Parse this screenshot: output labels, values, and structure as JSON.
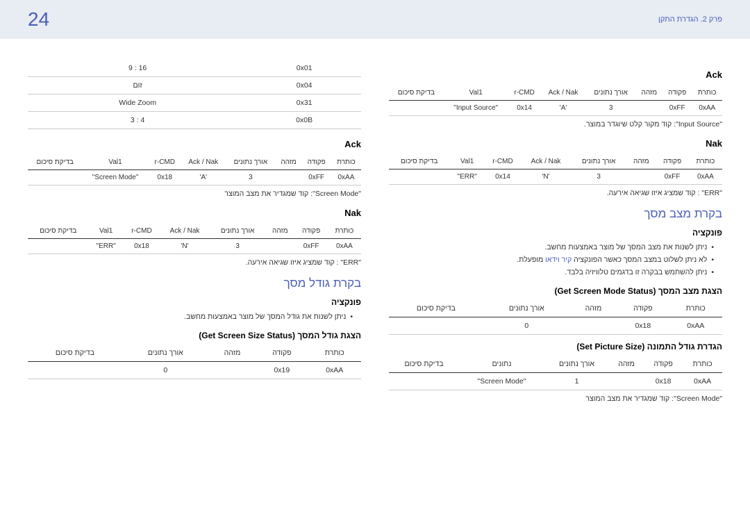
{
  "header": {
    "page_number": "24",
    "chapter": "פרק 2. הגדרת התקן"
  },
  "right_col": {
    "ack_title": "Ack",
    "ack_table": {
      "headers": [
        "כותרת",
        "פקודה",
        "מזהה",
        "אורך נתונים",
        "Ack / Nak",
        "r-CMD",
        "Val1",
        "בדיקת סיכום"
      ],
      "row": [
        "0xAA",
        "0xFF",
        "",
        "3",
        "'A'",
        "0x14",
        "\"Input Source\"",
        ""
      ]
    },
    "ack_note": "\"Input Source\": קוד מקור קלט שיוגדר במוצר.",
    "nak_title": "Nak",
    "nak_table": {
      "headers": [
        "כותרת",
        "פקודה",
        "מזהה",
        "אורך נתונים",
        "Ack / Nak",
        "r-CMD",
        "Val1",
        "בדיקת סיכום"
      ],
      "row": [
        "0xAA",
        "0xFF",
        "",
        "3",
        "'N'",
        "0x14",
        "\"ERR\"",
        ""
      ]
    },
    "nak_note": "\"ERR\" : קוד שמציג איזו שגיאה אירעה.",
    "screen_status_title": "בקרת מצב מסך",
    "func_title": "פונקציה",
    "func_bullets": {
      "b1": "ניתן לשנות את מצב המסך של מוצר באמצעות מחשב.",
      "b2_pre": "לא ניתן לשלוט במצב המסך כאשר הפונקציה ",
      "b2_blue": "קיר וידאו",
      "b2_post": " מופעלת.",
      "b3": "ניתן להשתמש בבקרה זו בדגמים טלוויזיה בלבד."
    },
    "get_mode_title": "הצגת מצב המסך (Get Screen Mode Status)",
    "get_mode_table": {
      "headers": [
        "כותרת",
        "פקודה",
        "מזהה",
        "אורך נתונים",
        "בדיקת סיכום"
      ],
      "row": [
        "0xAA",
        "0x18",
        "",
        "0",
        ""
      ]
    },
    "set_pic_title": "הגדרת גודל התמונה (Set Picture Size)",
    "set_pic_table": {
      "headers": [
        "כותרת",
        "פקודה",
        "מזהה",
        "אורך נתונים",
        "נתונים",
        "בדיקת סיכום"
      ],
      "row": [
        "0xAA",
        "0x18",
        "",
        "1",
        "\"Screen Mode\"",
        ""
      ]
    },
    "set_pic_note": "\"Screen Mode\": קוד שמגדיר את מצב המוצר"
  },
  "left_col": {
    "codes_table": {
      "rows": [
        [
          "0x01",
          "16 : 9"
        ],
        [
          "0x04",
          "זום"
        ],
        [
          "0x31",
          "Wide Zoom"
        ],
        [
          "0x0B",
          "4 : 3"
        ]
      ]
    },
    "ack_title": "Ack",
    "ack_table": {
      "headers": [
        "כותרת",
        "פקודה",
        "מזהה",
        "אורך נתונים",
        "Ack / Nak",
        "r-CMD",
        "Val1",
        "בדיקת סיכום"
      ],
      "row": [
        "0xAA",
        "0xFF",
        "",
        "3",
        "'A'",
        "0x18",
        "\"Screen Mode\"",
        ""
      ]
    },
    "ack_note": "\"Screen Mode\": קוד שמגדיר את מצב המוצר",
    "nak_title": "Nak",
    "nak_table": {
      "headers": [
        "כותרת",
        "פקודה",
        "מזהה",
        "אורך נתונים",
        "Ack / Nak",
        "r-CMD",
        "Val1",
        "בדיקת סיכום"
      ],
      "row": [
        "0xAA",
        "0xFF",
        "",
        "3",
        "'N'",
        "0x18",
        "\"ERR\"",
        ""
      ]
    },
    "nak_note": "\"ERR\" : קוד שמציג איזו שגיאה אירעה.",
    "size_ctrl_title": "בקרת גודל מסך",
    "func_title": "פונקציה",
    "func_bullet": "ניתן לשנות את גודל המסך של מוצר באמצעות מחשב.",
    "get_size_title": "הצגת גודל המסך (Get Screen Size Status)",
    "get_size_table": {
      "headers": [
        "כותרת",
        "פקודה",
        "מזהה",
        "אורך נתונים",
        "בדיקת סיכום"
      ],
      "row": [
        "0xAA",
        "0x19",
        "",
        "0",
        ""
      ]
    }
  }
}
